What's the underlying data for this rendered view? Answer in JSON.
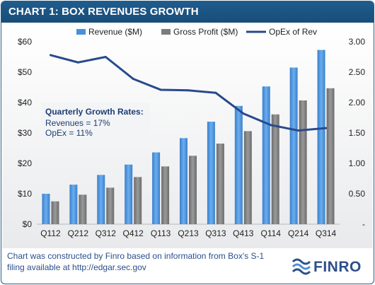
{
  "title": "CHART 1: BOX REVENUES GROWTH",
  "chart_data": {
    "type": "bar",
    "categories": [
      "Q112",
      "Q212",
      "Q312",
      "Q412",
      "Q113",
      "Q213",
      "Q313",
      "Q413",
      "Q114",
      "Q214",
      "Q314"
    ],
    "series": [
      {
        "name": "Revenue ($M)",
        "type": "bar",
        "axis": "left",
        "values": [
          10.0,
          13.0,
          16.2,
          19.6,
          23.6,
          28.3,
          33.7,
          38.9,
          45.3,
          51.5,
          57.3
        ]
      },
      {
        "name": "Gross Profit ($M)",
        "type": "bar",
        "axis": "left",
        "values": [
          7.5,
          9.7,
          12.0,
          15.5,
          19.0,
          22.5,
          26.5,
          30.6,
          36.1,
          40.7,
          44.7
        ]
      },
      {
        "name": "OpEx of Rev",
        "type": "line",
        "axis": "right",
        "values": [
          2.78,
          2.66,
          2.75,
          2.39,
          2.21,
          2.2,
          2.16,
          1.82,
          1.63,
          1.54,
          1.58
        ]
      }
    ],
    "y_left": {
      "min": 0,
      "max": 60,
      "ticks": [
        "$0",
        "$10",
        "$20",
        "$30",
        "$40",
        "$50",
        "$60"
      ]
    },
    "y_right": {
      "min": 0,
      "max": 3,
      "ticks": [
        "-",
        "0.50",
        "1.00",
        "1.50",
        "2.00",
        "2.50",
        "3.00"
      ]
    },
    "grid": false,
    "legend_position": "top",
    "colors": {
      "Revenue ($M)": "#4a90d9",
      "Gross Profit ($M)": "#7c7c7c",
      "OpEx of Rev": "#284a8c"
    }
  },
  "annotation": {
    "heading": "Quarterly Growth Rates:",
    "lines": [
      "Revenues = 17%",
      "OpEx = 11%"
    ]
  },
  "footer": {
    "line1": "Chart was constructed by Finro based on information from Box's S-1",
    "line2": "filing available at http://edgar.sec.gov"
  },
  "logo": {
    "text": "FINRO"
  }
}
